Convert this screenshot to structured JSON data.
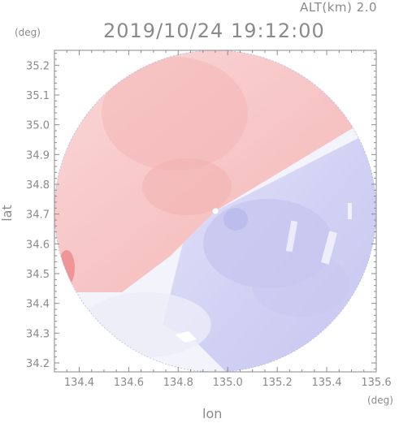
{
  "header": {
    "altitude_label": "ALT(km) 2.0",
    "timestamp": "2019/10/24 19:12:00"
  },
  "axes": {
    "x_title": "lon",
    "y_title": "lat",
    "x_unit": "(deg)",
    "y_unit": "(deg)",
    "x_ticks": [
      "134.4",
      "134.6",
      "134.8",
      "135.0",
      "135.2",
      "135.4",
      "135.6"
    ],
    "y_ticks": [
      "35.2",
      "35.1",
      "35.0",
      "34.9",
      "34.8",
      "34.7",
      "34.6",
      "34.5",
      "34.4",
      "34.3",
      "34.2"
    ]
  },
  "map": {
    "type": "radar-doppler-velocity",
    "lon_range": [
      134.3,
      135.6
    ],
    "lat_range": [
      34.17,
      35.25
    ],
    "radar_center": {
      "lon": 134.95,
      "lat": 34.705
    },
    "colors": {
      "approaching": "#a8a8f0",
      "receding": "#f6a8a8",
      "neutral": "#f2f2fa"
    }
  }
}
